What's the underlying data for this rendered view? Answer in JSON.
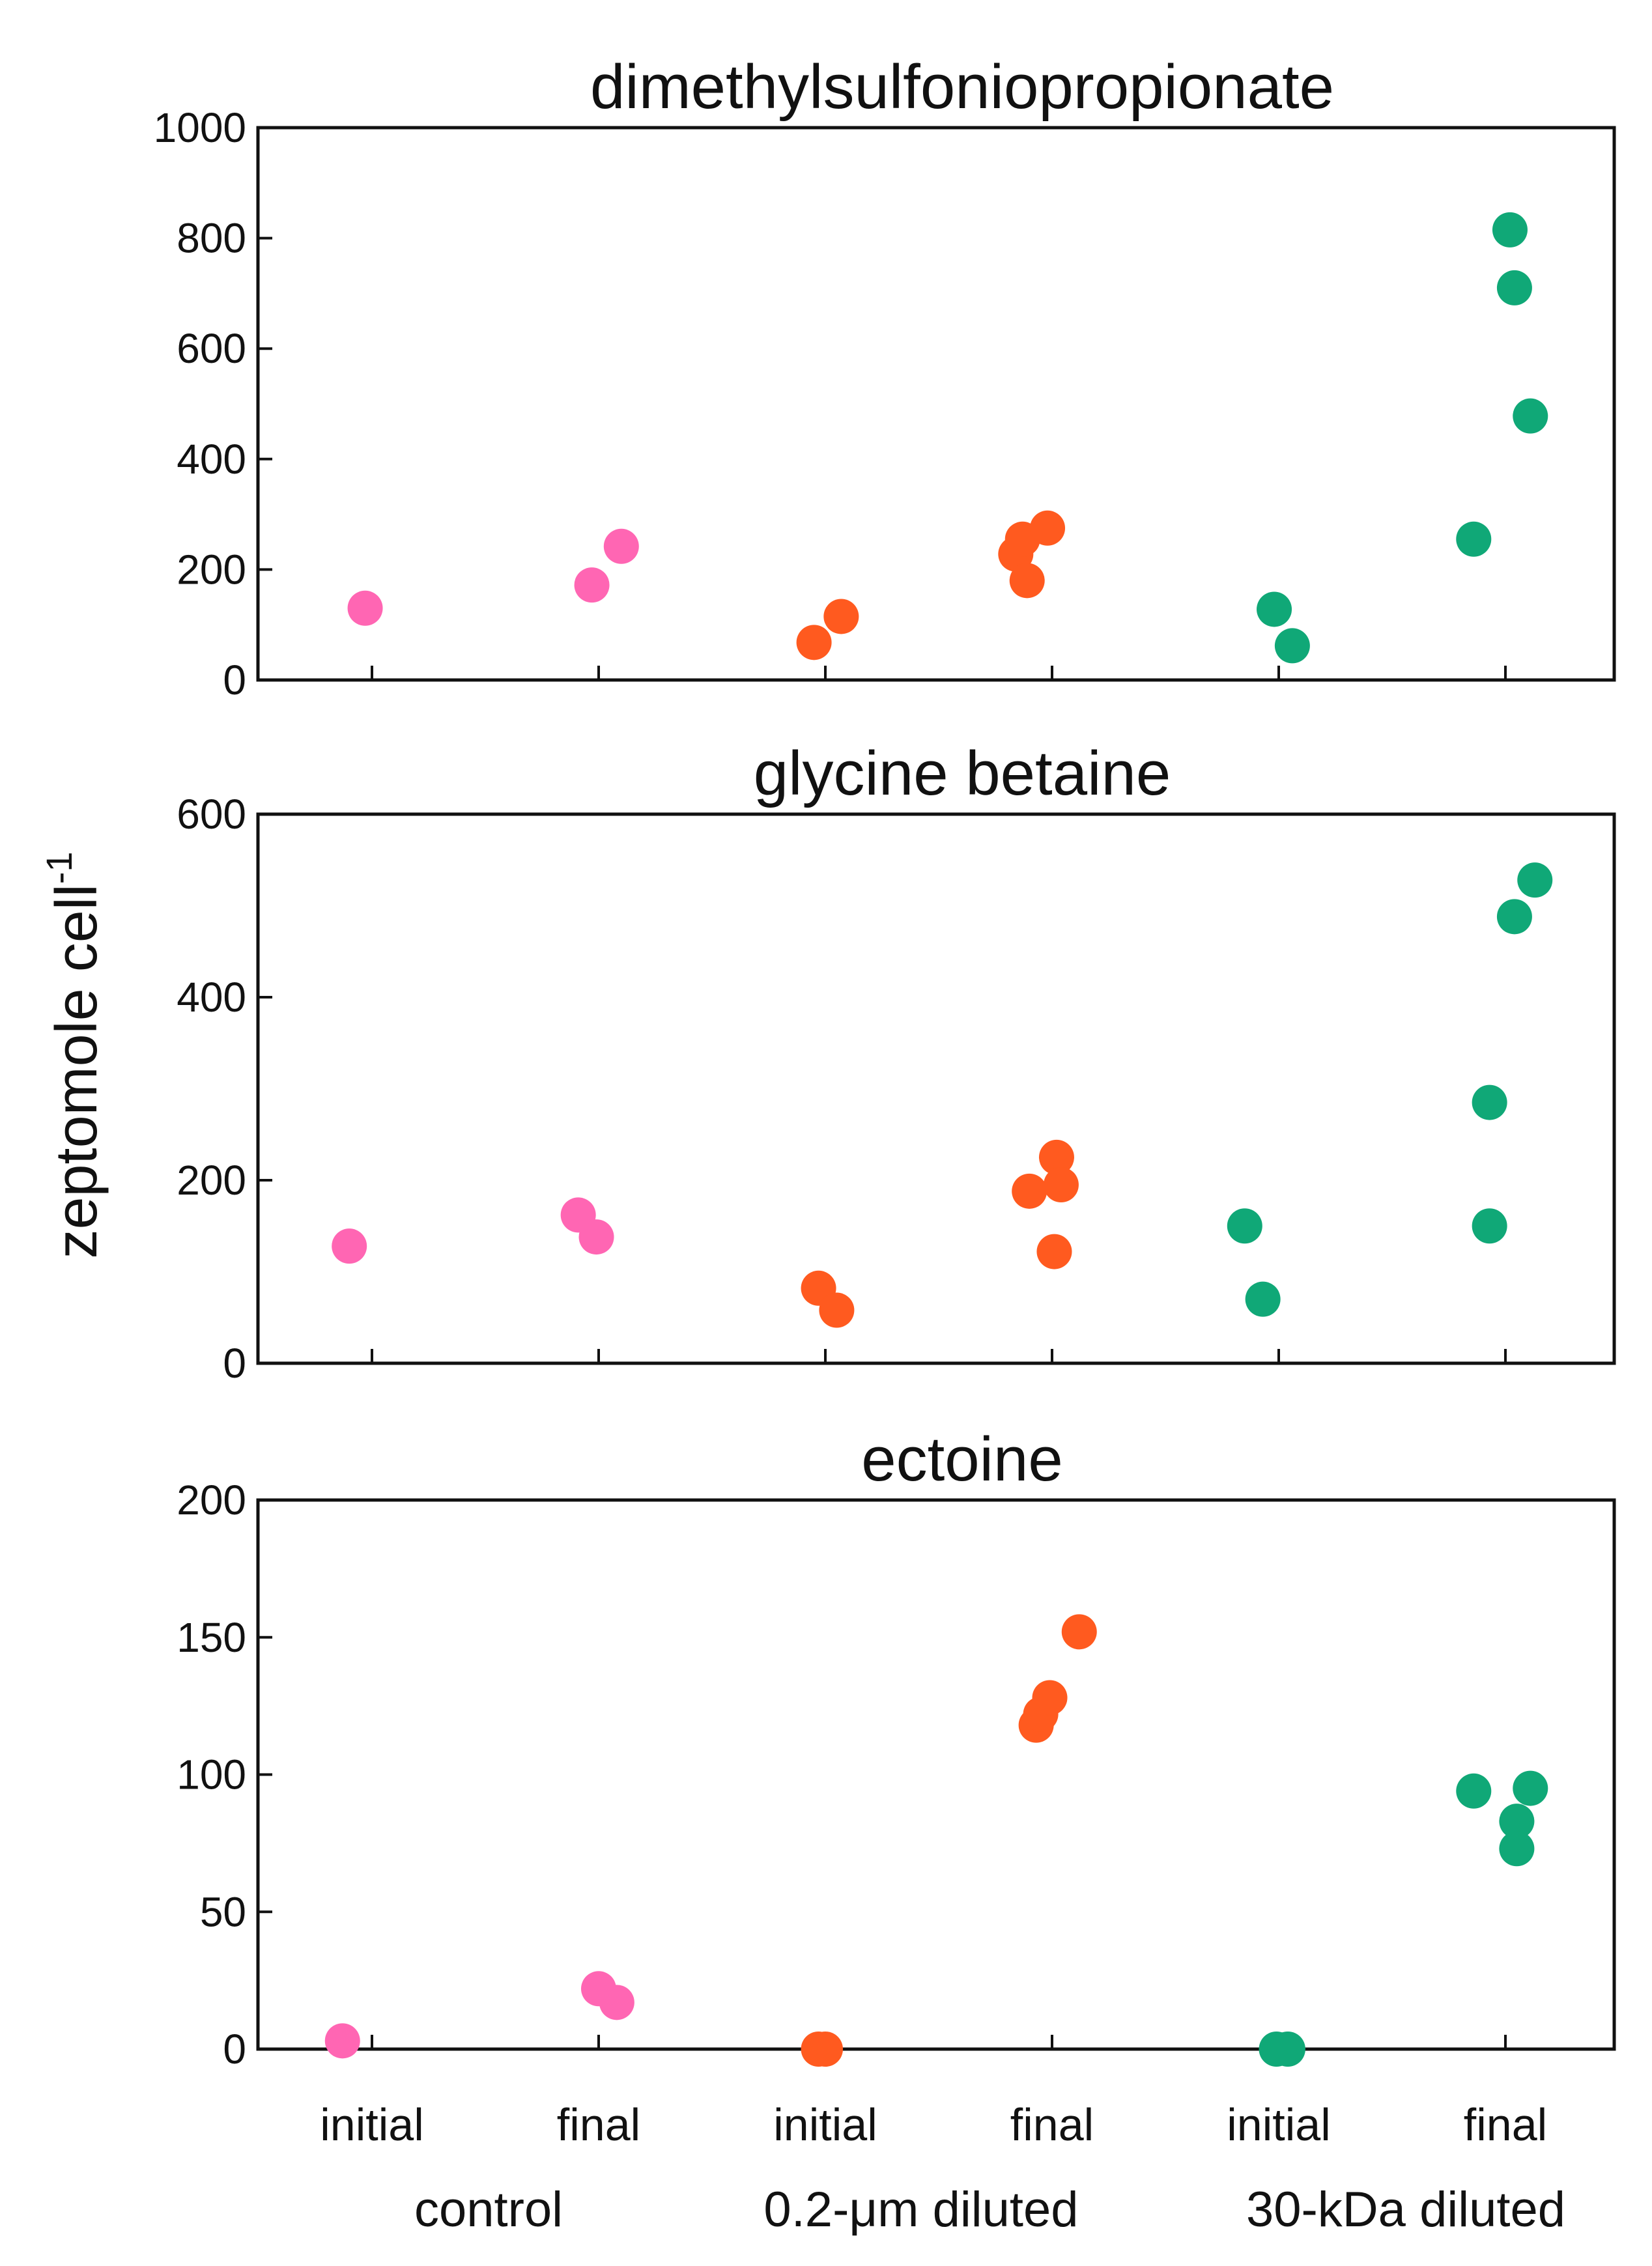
{
  "chart_data": {
    "type": "scatter",
    "ylabel": "zeptomole cell",
    "ylabel_superscript": "-1",
    "categories": [
      "initial",
      "final",
      "initial",
      "final",
      "initial",
      "final"
    ],
    "groups": [
      {
        "name": "control",
        "color": "#ff66b3"
      },
      {
        "name": "0.2-μm diluted",
        "color": "#ff5a1f"
      },
      {
        "name": "30-kDa diluted",
        "color": "#10a877"
      }
    ],
    "panels": [
      {
        "title": "dimethylsulfoniopropionate",
        "ylim": [
          0,
          1000
        ],
        "yticks": [
          0,
          200,
          400,
          600,
          800,
          1000
        ],
        "points": [
          {
            "category": 0,
            "offset": -0.03,
            "value": 130
          },
          {
            "category": 1,
            "offset": -0.03,
            "value": 172
          },
          {
            "category": 1,
            "offset": 0.1,
            "value": 242
          },
          {
            "category": 2,
            "offset": -0.05,
            "value": 68
          },
          {
            "category": 2,
            "offset": 0.07,
            "value": 115
          },
          {
            "category": 3,
            "offset": -0.16,
            "value": 228
          },
          {
            "category": 3,
            "offset": -0.13,
            "value": 255
          },
          {
            "category": 3,
            "offset": -0.11,
            "value": 180
          },
          {
            "category": 3,
            "offset": -0.02,
            "value": 275
          },
          {
            "category": 4,
            "offset": -0.02,
            "value": 128
          },
          {
            "category": 4,
            "offset": 0.06,
            "value": 62
          },
          {
            "category": 5,
            "offset": -0.14,
            "value": 255
          },
          {
            "category": 5,
            "offset": 0.02,
            "value": 815
          },
          {
            "category": 5,
            "offset": 0.04,
            "value": 710
          },
          {
            "category": 5,
            "offset": 0.11,
            "value": 478
          }
        ]
      },
      {
        "title": "glycine betaine",
        "ylim": [
          0,
          600
        ],
        "yticks": [
          0,
          200,
          400,
          600
        ],
        "points": [
          {
            "category": 0,
            "offset": -0.1,
            "value": 128
          },
          {
            "category": 1,
            "offset": -0.09,
            "value": 162
          },
          {
            "category": 1,
            "offset": -0.01,
            "value": 138
          },
          {
            "category": 2,
            "offset": -0.03,
            "value": 82
          },
          {
            "category": 2,
            "offset": 0.05,
            "value": 58
          },
          {
            "category": 3,
            "offset": -0.1,
            "value": 188
          },
          {
            "category": 3,
            "offset": 0.02,
            "value": 225
          },
          {
            "category": 3,
            "offset": 0.04,
            "value": 195
          },
          {
            "category": 3,
            "offset": 0.01,
            "value": 122
          },
          {
            "category": 4,
            "offset": -0.15,
            "value": 150
          },
          {
            "category": 4,
            "offset": -0.07,
            "value": 70
          },
          {
            "category": 5,
            "offset": -0.07,
            "value": 285
          },
          {
            "category": 5,
            "offset": -0.07,
            "value": 150
          },
          {
            "category": 5,
            "offset": 0.04,
            "value": 488
          },
          {
            "category": 5,
            "offset": 0.13,
            "value": 528
          }
        ]
      },
      {
        "title": "ectoine",
        "ylim": [
          0,
          200
        ],
        "yticks": [
          0,
          50,
          100,
          150,
          200
        ],
        "points": [
          {
            "category": 0,
            "offset": -0.13,
            "value": 3
          },
          {
            "category": 1,
            "offset": 0.0,
            "value": 22
          },
          {
            "category": 1,
            "offset": 0.08,
            "value": 17
          },
          {
            "category": 2,
            "offset": -0.03,
            "value": 0
          },
          {
            "category": 2,
            "offset": 0.0,
            "value": 0
          },
          {
            "category": 3,
            "offset": -0.07,
            "value": 118
          },
          {
            "category": 3,
            "offset": -0.05,
            "value": 122
          },
          {
            "category": 3,
            "offset": -0.01,
            "value": 128
          },
          {
            "category": 3,
            "offset": 0.12,
            "value": 152
          },
          {
            "category": 4,
            "offset": -0.01,
            "value": 0
          },
          {
            "category": 4,
            "offset": 0.04,
            "value": 0
          },
          {
            "category": 5,
            "offset": -0.14,
            "value": 94
          },
          {
            "category": 5,
            "offset": 0.05,
            "value": 83
          },
          {
            "category": 5,
            "offset": 0.05,
            "value": 73
          },
          {
            "category": 5,
            "offset": 0.11,
            "value": 95
          }
        ]
      }
    ]
  }
}
